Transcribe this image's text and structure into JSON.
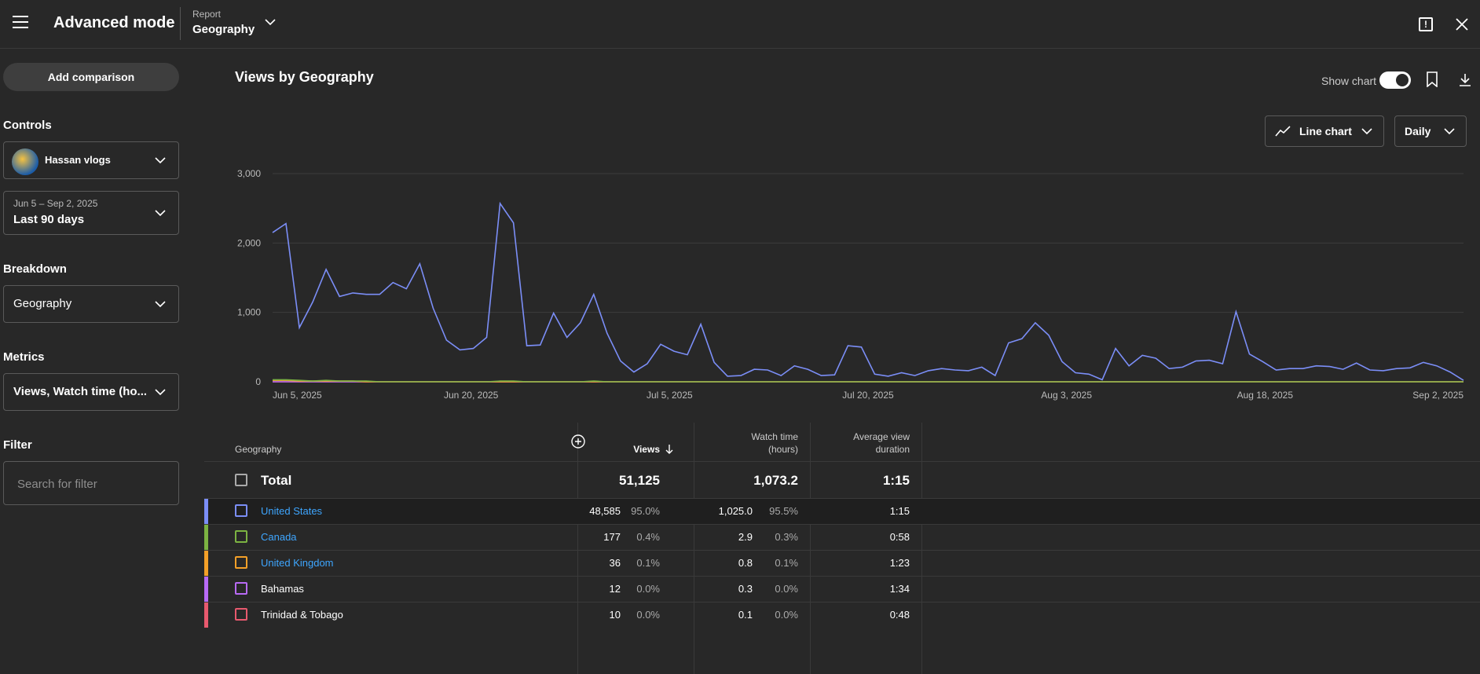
{
  "topbar": {
    "app_title": "Advanced mode",
    "report_label": "Report",
    "report_value": "Geography"
  },
  "sidebar": {
    "add_comparison": "Add comparison",
    "controls_label": "Controls",
    "channel_name": "Hassan vlogs",
    "date_range_sub": "Jun 5 – Sep 2, 2025",
    "date_range_main": "Last 90 days",
    "breakdown_label": "Breakdown",
    "breakdown_value": "Geography",
    "metrics_label": "Metrics",
    "metrics_value": "Views, Watch time (ho...",
    "filter_label": "Filter",
    "filter_placeholder": "Search for filter"
  },
  "main": {
    "chart_title": "Views by Geography",
    "show_chart_label": "Show chart",
    "chart_type": "Line chart",
    "interval": "Daily"
  },
  "chart_data": {
    "type": "line",
    "title": "",
    "xlabel": "",
    "ylabel": "",
    "ylim": [
      0,
      3000
    ],
    "yticks": [
      "0",
      "1,000",
      "2,000",
      "3,000"
    ],
    "xticks": [
      "Jun 5, 2025",
      "Jun 20, 2025",
      "Jul 5, 2025",
      "Jul 20, 2025",
      "Aug 3, 2025",
      "Aug 18, 2025",
      "Sep 2, 2025"
    ],
    "grid": true,
    "series": [
      {
        "color": "#7b8ef7",
        "values": [
          2150,
          2280,
          780,
          1150,
          1620,
          1230,
          1280,
          1260,
          1260,
          1430,
          1340,
          1700,
          1060,
          600,
          460,
          480,
          640,
          2570,
          2290,
          520,
          530,
          990,
          640,
          850,
          1260,
          700,
          300,
          140,
          260,
          540,
          440,
          390,
          830,
          280,
          80,
          90,
          180,
          170,
          90,
          230,
          180,
          90,
          100,
          520,
          500,
          110,
          80,
          130,
          90,
          160,
          190,
          170,
          160,
          210,
          90,
          560,
          620,
          850,
          670,
          290,
          130,
          110,
          30,
          480,
          230,
          380,
          340,
          190,
          210,
          300,
          310,
          260,
          1010,
          400,
          290,
          170,
          190,
          190,
          230,
          220,
          180,
          270,
          170,
          160,
          190,
          200,
          280,
          230,
          140,
          20
        ]
      },
      {
        "color": "#7cb342",
        "values": [
          30,
          30,
          20,
          10,
          20,
          10,
          10,
          10,
          0,
          0,
          0,
          0,
          0,
          0,
          0,
          0,
          0,
          10,
          10,
          0,
          0,
          0,
          0,
          0,
          10,
          0,
          0,
          0,
          0,
          0,
          0,
          0,
          0,
          0,
          0,
          0,
          0,
          0,
          0,
          0,
          0,
          0,
          0,
          0,
          0,
          0,
          0,
          0,
          0,
          0,
          0,
          0,
          0,
          0,
          0,
          0,
          0,
          0,
          0,
          0,
          0,
          0,
          0,
          0,
          0,
          0,
          0,
          0,
          0,
          0,
          0,
          0,
          0,
          0,
          0,
          0,
          0,
          0,
          0,
          0,
          0,
          0,
          0,
          0,
          0,
          0,
          0,
          0,
          0,
          0
        ]
      },
      {
        "color": "#f4a028",
        "values": [
          20,
          20,
          10,
          10,
          10,
          10,
          10,
          0,
          0,
          0,
          0,
          0,
          0,
          0,
          0,
          0,
          0,
          0,
          0,
          0,
          0,
          0,
          0,
          0,
          0,
          0,
          0,
          0,
          0,
          0,
          0,
          0,
          0,
          0,
          0,
          0,
          0,
          0,
          0,
          0,
          0,
          0,
          0,
          0,
          0,
          0,
          0,
          0,
          0,
          0,
          0,
          0,
          0,
          0,
          0,
          0,
          0,
          0,
          0,
          0,
          0,
          0,
          0,
          0,
          0,
          0,
          0,
          0,
          0,
          0,
          0,
          0,
          0,
          0,
          0,
          0,
          0,
          0,
          0,
          0,
          0,
          0,
          0,
          0,
          0,
          0,
          0,
          0,
          0,
          0
        ]
      },
      {
        "color": "#b86af5",
        "values": [
          0,
          0,
          0,
          0,
          0,
          0,
          0,
          0,
          0,
          0,
          0,
          0,
          0,
          0,
          0,
          0,
          0,
          0,
          0,
          0,
          0,
          0,
          0,
          0,
          0,
          0,
          0,
          0,
          0,
          0,
          0,
          0,
          0,
          0,
          0,
          0,
          0,
          0,
          0,
          0,
          0,
          0,
          0,
          0,
          0,
          0,
          0,
          0,
          0,
          0,
          0,
          0,
          0,
          0,
          0,
          0,
          0,
          0,
          0,
          0,
          0,
          0,
          0,
          0,
          0,
          0,
          0,
          0,
          0,
          0,
          0,
          0,
          0,
          0,
          0,
          0,
          0,
          0,
          0,
          0,
          0,
          0,
          0,
          0,
          0,
          0,
          0,
          0,
          0,
          0
        ]
      },
      {
        "color": "#e8596e",
        "values": [
          0,
          0,
          0,
          0,
          0,
          0,
          0,
          0,
          0,
          0,
          0,
          0,
          0,
          0,
          0,
          0,
          0,
          0,
          0,
          0,
          0,
          0,
          0,
          0,
          0,
          0,
          0,
          0,
          0,
          0,
          0,
          0,
          0,
          0,
          0,
          0,
          0,
          0,
          0,
          0,
          0,
          0,
          0,
          0,
          0,
          0,
          0,
          0,
          0,
          0,
          0,
          0,
          0,
          0,
          0,
          0,
          0,
          0,
          0,
          0,
          0,
          0,
          0,
          0,
          0,
          0,
          0,
          0,
          0,
          0,
          0,
          0,
          0,
          0,
          0,
          0,
          0,
          0,
          0,
          0,
          0,
          0,
          0,
          0,
          0,
          0,
          0,
          0,
          0,
          0
        ]
      }
    ]
  },
  "table": {
    "headers": {
      "geography": "Geography",
      "views": "Views",
      "watch_time_1": "Watch time",
      "watch_time_2": "(hours)",
      "avd_1": "Average view",
      "avd_2": "duration"
    },
    "total": {
      "label": "Total",
      "views": "51,125",
      "watch_time": "1,073.2",
      "avd": "1:15"
    },
    "rows": [
      {
        "name": "United States",
        "views": "48,585",
        "views_pct": "95.0%",
        "watch": "1,025.0",
        "watch_pct": "95.5%",
        "avd": "1:15",
        "color": "#7b8ef7",
        "link": true
      },
      {
        "name": "Canada",
        "views": "177",
        "views_pct": "0.4%",
        "watch": "2.9",
        "watch_pct": "0.3%",
        "avd": "0:58",
        "color": "#7cb342",
        "link": true
      },
      {
        "name": "United Kingdom",
        "views": "36",
        "views_pct": "0.1%",
        "watch": "0.8",
        "watch_pct": "0.1%",
        "avd": "1:23",
        "color": "#f4a028",
        "link": true
      },
      {
        "name": "Bahamas",
        "views": "12",
        "views_pct": "0.0%",
        "watch": "0.3",
        "watch_pct": "0.0%",
        "avd": "1:34",
        "color": "#b86af5",
        "link": false
      },
      {
        "name": "Trinidad & Tobago",
        "views": "10",
        "views_pct": "0.0%",
        "watch": "0.1",
        "watch_pct": "0.0%",
        "avd": "0:48",
        "color": "#e8596e",
        "link": false
      }
    ]
  }
}
